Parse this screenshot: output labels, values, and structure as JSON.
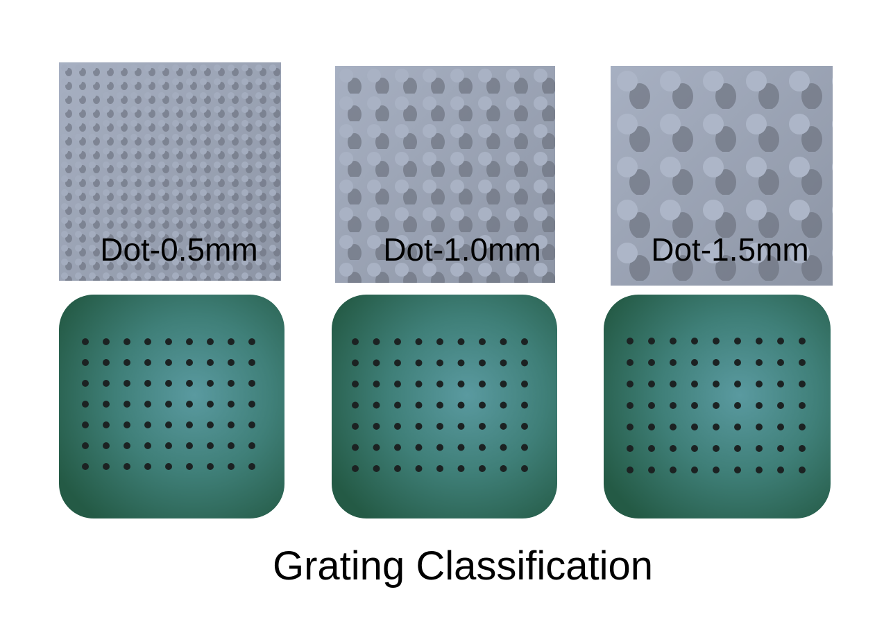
{
  "panels": [
    {
      "label": "Dot-0.5mm"
    },
    {
      "label": "Dot-1.0mm"
    },
    {
      "label": "Dot-1.5mm"
    }
  ],
  "caption": "Grating Classification"
}
